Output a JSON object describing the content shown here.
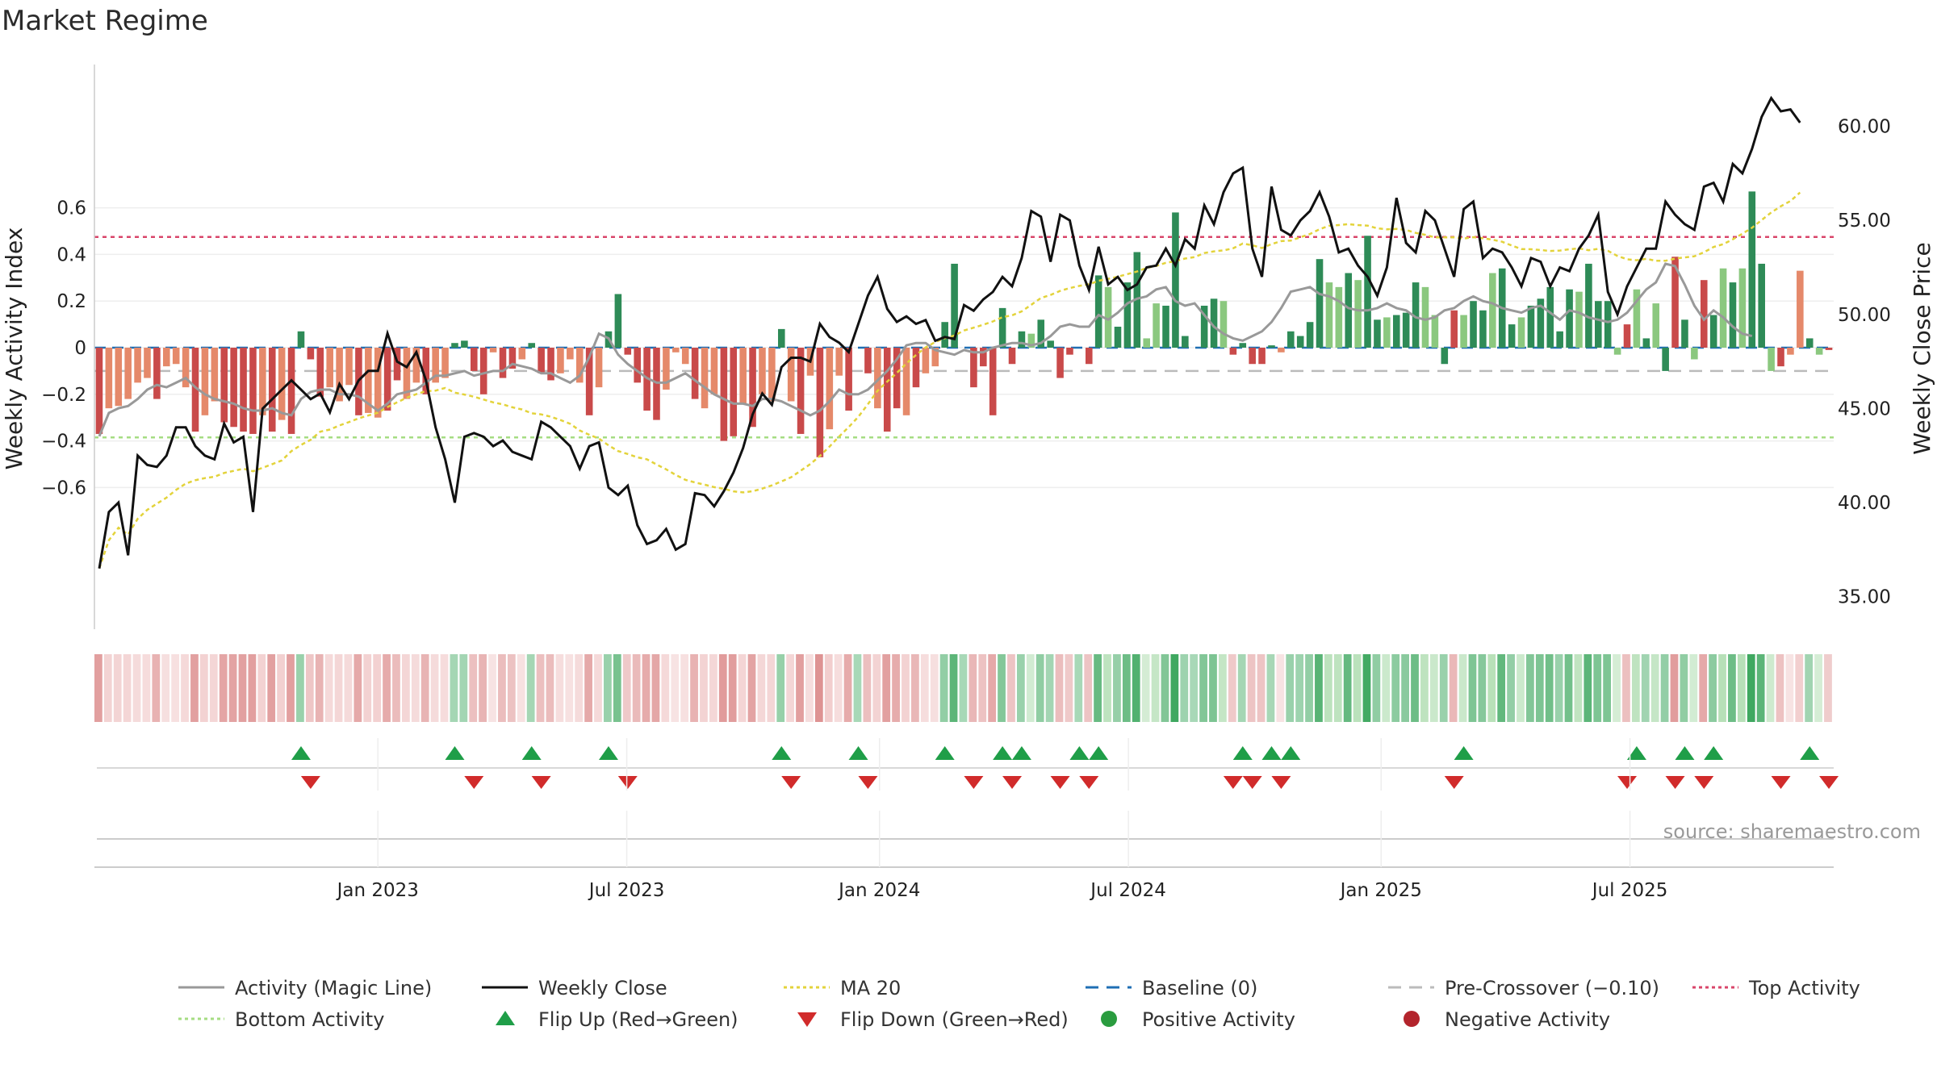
{
  "chart_data": {
    "type": "bar",
    "title": "Market Regime",
    "source": "source: sharemaestro.com",
    "left_axis": {
      "label": "Weekly Activity Index",
      "range": [
        -0.73,
        0.73
      ],
      "ticks": [
        0.6,
        0.4,
        0.2,
        0,
        -0.2,
        -0.4,
        -0.6
      ],
      "tick_labels": [
        "0.6",
        "0.4",
        "0.2",
        "0",
        "−0.2",
        "−0.4",
        "−0.6"
      ]
    },
    "right_axis": {
      "label": "Weekly Close Price",
      "range": [
        34.0,
        63.5
      ],
      "ticks": [
        60,
        55,
        50,
        45,
        40,
        35
      ],
      "tick_labels": [
        "60.00",
        "55.00",
        "50.00",
        "45.00",
        "40.00",
        "35.00"
      ]
    },
    "x_axis": {
      "tick_labels": [
        "Jan 2023",
        "Jul 2023",
        "Jan 2024",
        "Jul 2024",
        "Jan 2025",
        "Jul 2025"
      ],
      "tick_weeks": [
        29.5,
        55.4,
        81.7,
        107.6,
        133.9,
        159.8
      ]
    },
    "levels": {
      "top_activity": 0.475,
      "bottom_activity": -0.385,
      "baseline": 0,
      "pre_crossover": -0.1
    },
    "activity": [
      -0.37,
      -0.26,
      -0.25,
      -0.22,
      -0.15,
      -0.13,
      -0.22,
      -0.08,
      -0.07,
      -0.17,
      -0.36,
      -0.29,
      -0.23,
      -0.32,
      -0.34,
      -0.36,
      -0.37,
      -0.29,
      -0.36,
      -0.31,
      -0.37,
      0.07,
      -0.05,
      -0.21,
      -0.17,
      -0.23,
      -0.16,
      -0.29,
      -0.28,
      -0.3,
      -0.27,
      -0.14,
      -0.22,
      -0.15,
      -0.2,
      -0.15,
      -0.13,
      0.02,
      0.03,
      -0.1,
      -0.2,
      -0.02,
      -0.13,
      -0.09,
      -0.05,
      0.02,
      -0.11,
      -0.14,
      -0.11,
      -0.05,
      -0.15,
      -0.29,
      -0.17,
      0.07,
      0.23,
      -0.03,
      -0.15,
      -0.27,
      -0.31,
      -0.18,
      -0.02,
      -0.07,
      -0.22,
      -0.26,
      -0.2,
      -0.4,
      -0.38,
      -0.24,
      -0.34,
      -0.2,
      -0.23,
      0.08,
      -0.23,
      -0.37,
      -0.12,
      -0.47,
      -0.35,
      -0.12,
      -0.27,
      0.0,
      -0.11,
      -0.26,
      -0.36,
      -0.26,
      -0.29,
      -0.17,
      -0.11,
      -0.08,
      0.11,
      0.36,
      0.0,
      -0.17,
      -0.08,
      -0.29,
      0.17,
      -0.07,
      0.07,
      0.06,
      0.12,
      0.03,
      -0.13,
      -0.03,
      0.0,
      -0.07,
      0.31,
      0.26,
      0.09,
      0.28,
      0.41,
      0.04,
      0.19,
      0.18,
      0.58,
      0.05,
      0.0,
      0.18,
      0.21,
      0.2,
      -0.03,
      0.02,
      -0.07,
      -0.07,
      0.01,
      -0.02,
      0.07,
      0.05,
      0.11,
      0.38,
      0.28,
      0.26,
      0.32,
      0.29,
      0.48,
      0.12,
      0.13,
      0.14,
      0.15,
      0.28,
      0.26,
      0.14,
      -0.07,
      0.16,
      0.14,
      0.2,
      0.16,
      0.32,
      0.34,
      0.1,
      0.13,
      0.18,
      0.21,
      0.26,
      0.07,
      0.25,
      0.24,
      0.36,
      0.2,
      0.2,
      -0.03,
      0.1,
      0.25,
      0.04,
      0.19,
      -0.1,
      0.39,
      0.12,
      -0.05,
      0.29,
      0.14,
      0.34,
      0.28,
      0.34,
      0.67,
      0.36,
      -0.1,
      -0.08,
      -0.03,
      0.33,
      0.04,
      -0.03,
      -0.01
    ],
    "activity_colors": [
      "#c94a4a",
      "#e5896a",
      "#e5896a",
      "#e5896a",
      "#e5896a",
      "#e5896a",
      "#c94a4a",
      "#e5896a",
      "#e5896a",
      "#e5896a",
      "#c94a4a",
      "#e5896a",
      "#e5896a",
      "#c94a4a",
      "#c94a4a",
      "#c94a4a",
      "#c94a4a",
      "#e5896a",
      "#c94a4a",
      "#e5896a",
      "#c94a4a",
      "#2e8b57",
      "#c94a4a",
      "#c94a4a",
      "#e5896a",
      "#e5896a",
      "#e5896a",
      "#c94a4a",
      "#e5896a",
      "#e5896a",
      "#c94a4a",
      "#c94a4a",
      "#e5896a",
      "#e5896a",
      "#c94a4a",
      "#e5896a",
      "#e5896a",
      "#2e8b57",
      "#2e8b57",
      "#c94a4a",
      "#c94a4a",
      "#e5896a",
      "#c94a4a",
      "#c94a4a",
      "#e5896a",
      "#2e8b57",
      "#c94a4a",
      "#c94a4a",
      "#e5896a",
      "#e5896a",
      "#e5896a",
      "#c94a4a",
      "#e5896a",
      "#2e8b57",
      "#2e8b57",
      "#c94a4a",
      "#c94a4a",
      "#c94a4a",
      "#c94a4a",
      "#e5896a",
      "#e5896a",
      "#e5896a",
      "#c94a4a",
      "#e5896a",
      "#e5896a",
      "#c94a4a",
      "#c94a4a",
      "#e5896a",
      "#c94a4a",
      "#e5896a",
      "#e5896a",
      "#2e8b57",
      "#e5896a",
      "#c94a4a",
      "#e5896a",
      "#c94a4a",
      "#e5896a",
      "#e5896a",
      "#c94a4a",
      "#2e8b57",
      "#c94a4a",
      "#e5896a",
      "#c94a4a",
      "#c94a4a",
      "#e5896a",
      "#c94a4a",
      "#e5896a",
      "#e5896a",
      "#2e8b57",
      "#2e8b57",
      "#2e8b57",
      "#c94a4a",
      "#c94a4a",
      "#c94a4a",
      "#2e8b57",
      "#c94a4a",
      "#2e8b57",
      "#8bc87f",
      "#2e8b57",
      "#2e8b57",
      "#c94a4a",
      "#c94a4a",
      "#2e8b57",
      "#c94a4a",
      "#2e8b57",
      "#8bc87f",
      "#2e8b57",
      "#2e8b57",
      "#2e8b57",
      "#8bc87f",
      "#8bc87f",
      "#2e8b57",
      "#2e8b57",
      "#2e8b57",
      "#2e8b57",
      "#2e8b57",
      "#2e8b57",
      "#8bc87f",
      "#c94a4a",
      "#2e8b57",
      "#c94a4a",
      "#c94a4a",
      "#2e8b57",
      "#e5896a",
      "#2e8b57",
      "#2e8b57",
      "#2e8b57",
      "#2e8b57",
      "#8bc87f",
      "#8bc87f",
      "#2e8b57",
      "#8bc87f",
      "#2e8b57",
      "#2e8b57",
      "#8bc87f",
      "#2e8b57",
      "#2e8b57",
      "#2e8b57",
      "#8bc87f",
      "#8bc87f",
      "#2e8b57",
      "#c94a4a",
      "#8bc87f",
      "#2e8b57",
      "#2e8b57",
      "#8bc87f",
      "#2e8b57",
      "#2e8b57",
      "#8bc87f",
      "#2e8b57",
      "#2e8b57",
      "#2e8b57",
      "#2e8b57",
      "#2e8b57",
      "#8bc87f",
      "#2e8b57",
      "#2e8b57",
      "#2e8b57",
      "#8bc87f",
      "#c94a4a",
      "#8bc87f",
      "#2e8b57",
      "#8bc87f",
      "#2e8b57",
      "#c94a4a",
      "#2e8b57",
      "#8bc87f",
      "#c94a4a",
      "#2e8b57",
      "#8bc87f",
      "#2e8b57",
      "#8bc87f",
      "#2e8b57",
      "#2e8b57",
      "#8bc87f",
      "#c94a4a",
      "#e5896a",
      "#e5896a",
      "#2e8b57",
      "#8bc87f",
      "#c94a4a",
      "#c94a4a"
    ],
    "magic_line": [
      -0.38,
      -0.28,
      -0.26,
      -0.25,
      -0.22,
      -0.18,
      -0.16,
      -0.17,
      -0.15,
      -0.13,
      -0.17,
      -0.2,
      -0.22,
      -0.23,
      -0.24,
      -0.26,
      -0.27,
      -0.27,
      -0.26,
      -0.28,
      -0.29,
      -0.22,
      -0.19,
      -0.18,
      -0.18,
      -0.2,
      -0.2,
      -0.21,
      -0.24,
      -0.27,
      -0.24,
      -0.2,
      -0.19,
      -0.18,
      -0.15,
      -0.12,
      -0.12,
      -0.11,
      -0.1,
      -0.12,
      -0.11,
      -0.1,
      -0.1,
      -0.07,
      -0.08,
      -0.09,
      -0.11,
      -0.11,
      -0.13,
      -0.15,
      -0.12,
      -0.04,
      0.06,
      0.04,
      -0.03,
      -0.07,
      -0.1,
      -0.13,
      -0.15,
      -0.15,
      -0.13,
      -0.11,
      -0.14,
      -0.17,
      -0.2,
      -0.22,
      -0.24,
      -0.24,
      -0.25,
      -0.22,
      -0.22,
      -0.23,
      -0.25,
      -0.27,
      -0.29,
      -0.27,
      -0.23,
      -0.18,
      -0.2,
      -0.2,
      -0.18,
      -0.14,
      -0.1,
      -0.05,
      0.01,
      0.02,
      0.02,
      -0.01,
      -0.02,
      -0.03,
      -0.01,
      -0.02,
      -0.02,
      0.0,
      0.01,
      0.02,
      0.02,
      0.01,
      0.02,
      0.05,
      0.09,
      0.1,
      0.09,
      0.09,
      0.14,
      0.12,
      0.15,
      0.19,
      0.21,
      0.22,
      0.25,
      0.26,
      0.2,
      0.18,
      0.19,
      0.14,
      0.09,
      0.06,
      0.04,
      0.03,
      0.05,
      0.07,
      0.11,
      0.17,
      0.24,
      0.25,
      0.26,
      0.23,
      0.22,
      0.2,
      0.17,
      0.16,
      0.16,
      0.17,
      0.19,
      0.17,
      0.16,
      0.13,
      0.12,
      0.13,
      0.16,
      0.17,
      0.2,
      0.22,
      0.2,
      0.19,
      0.17,
      0.16,
      0.15,
      0.17,
      0.18,
      0.15,
      0.12,
      0.16,
      0.15,
      0.13,
      0.12,
      0.11,
      0.12,
      0.15,
      0.2,
      0.25,
      0.28,
      0.36,
      0.35,
      0.27,
      0.18,
      0.12,
      0.16,
      0.13,
      0.09,
      0.06,
      0.05
    ],
    "weekly_close": [
      36.5,
      39.5,
      40.0,
      37.2,
      42.5,
      42.0,
      41.9,
      42.5,
      44.0,
      44.0,
      43.0,
      42.5,
      42.3,
      44.2,
      43.2,
      43.5,
      39.5,
      45.0,
      45.5,
      46.0,
      46.5,
      46.0,
      45.5,
      45.8,
      44.8,
      46.3,
      45.5,
      46.5,
      47.0,
      47.0,
      49.0,
      47.5,
      47.2,
      48.0,
      46.5,
      44.0,
      42.3,
      40.0,
      43.5,
      43.7,
      43.5,
      43.0,
      43.3,
      42.7,
      42.5,
      42.3,
      44.3,
      44.0,
      43.5,
      43.0,
      41.8,
      43.0,
      43.2,
      40.8,
      40.4,
      40.9,
      38.8,
      37.8,
      38.0,
      38.6,
      37.5,
      37.8,
      40.5,
      40.4,
      39.8,
      40.6,
      41.6,
      42.9,
      44.7,
      45.8,
      45.2,
      47.2,
      47.7,
      47.7,
      47.5,
      49.5,
      48.8,
      48.5,
      48.0,
      49.5,
      51.0,
      52.0,
      50.3,
      49.6,
      49.9,
      49.5,
      49.7,
      48.6,
      48.8,
      48.7,
      50.5,
      50.2,
      50.8,
      51.2,
      52.0,
      51.5,
      53.0,
      55.5,
      55.2,
      52.8,
      55.3,
      55.0,
      52.6,
      51.3,
      53.6,
      51.6,
      52.0,
      51.3,
      51.6,
      52.5,
      52.6,
      53.5,
      52.6,
      54.0,
      53.5,
      55.8,
      54.8,
      56.5,
      57.5,
      57.8,
      53.5,
      52.0,
      56.8,
      54.5,
      54.2,
      55.0,
      55.5,
      56.5,
      55.2,
      53.3,
      53.5,
      52.6,
      52.0,
      51.0,
      52.5,
      56.2,
      53.8,
      53.3,
      55.5,
      55.0,
      53.5,
      52.0,
      55.6,
      56.0,
      53.0,
      53.5,
      53.3,
      52.5,
      51.5,
      53.0,
      52.8,
      51.5,
      52.5,
      52.3,
      53.5,
      54.2,
      55.3,
      51.2,
      50.0,
      51.5,
      52.5,
      53.5,
      53.5,
      56.0,
      55.3,
      54.8,
      54.5,
      56.8,
      57.0,
      56.0,
      58.0,
      57.5,
      58.8,
      60.5,
      61.5,
      60.8,
      60.9,
      60.2
    ]
  },
  "legend": [
    {
      "label": "Activity (Magic Line)",
      "symbol": "line-gray"
    },
    {
      "label": "Weekly Close",
      "symbol": "line-black"
    },
    {
      "label": "MA 20",
      "symbol": "dotted-yellow"
    },
    {
      "label": "Baseline (0)",
      "symbol": "dashed-blue"
    },
    {
      "label": "Pre-Crossover (−0.10)",
      "symbol": "dashed-gray"
    },
    {
      "label": "Top Activity",
      "symbol": "dotted-red"
    },
    {
      "label": "Bottom Activity",
      "symbol": "dotted-green"
    },
    {
      "label": "Flip Up (Red→Green)",
      "symbol": "triangle-up-green"
    },
    {
      "label": "Flip Down (Green→Red)",
      "symbol": "triangle-down-red"
    },
    {
      "label": "Positive Activity",
      "symbol": "dot-green"
    },
    {
      "label": "Negative Activity",
      "symbol": "dot-red"
    }
  ],
  "colors": {
    "strong_green": "#2e8b57",
    "light_green": "#8bc87f",
    "strong_red": "#c94a4a",
    "light_red": "#e5896a",
    "magic_line": "#999999",
    "close_line": "#111111",
    "ma20": "#e3d33b",
    "baseline": "#1f6fb4",
    "pre_crossover": "#bbbbbb",
    "top_activity": "#d9456a",
    "bottom_activity": "#a6dd83",
    "flip_up": "#1f9e48",
    "flip_down": "#d12b2b"
  }
}
